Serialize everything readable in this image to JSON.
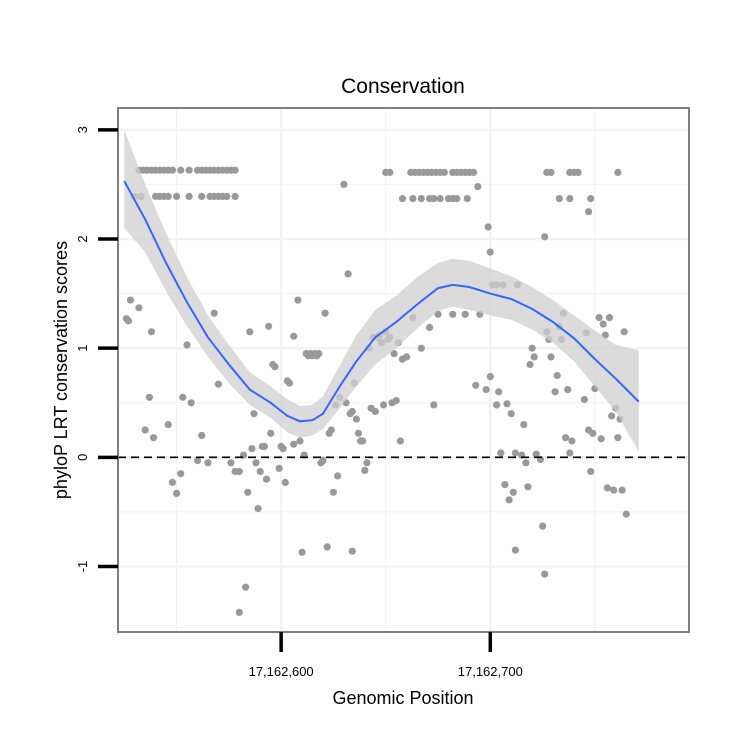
{
  "chart_data": {
    "type": "scatter",
    "title": "Conservation",
    "xlabel": "Genomic Position",
    "ylabel": "phyloP LRT conservation scores",
    "xlim": [
      17162522,
      17162795
    ],
    "ylim": [
      -1.6,
      3.2
    ],
    "x_ticks": [
      17162600,
      17162700
    ],
    "x_tick_labels": [
      "17,162,600",
      "17,162,700"
    ],
    "y_ticks": [
      -1,
      0,
      1,
      2,
      3
    ],
    "y_tick_labels": [
      "-1",
      "0",
      "1",
      "2",
      "3"
    ],
    "x_minor_grid": [
      17162550,
      17162650,
      17162750
    ],
    "y_minor_grid": [
      -0.5,
      0.5,
      1.5,
      2.5
    ],
    "reference_line": {
      "y": 0,
      "style": "dashed"
    },
    "points": [
      [
        17162532,
        2.63
      ],
      [
        17162534,
        2.63
      ],
      [
        17162536,
        2.63
      ],
      [
        17162538,
        2.63
      ],
      [
        17162540,
        2.63
      ],
      [
        17162542,
        2.63
      ],
      [
        17162544,
        2.63
      ],
      [
        17162546,
        2.63
      ],
      [
        17162548,
        2.63
      ],
      [
        17162552,
        2.63
      ],
      [
        17162556,
        2.63
      ],
      [
        17162560,
        2.63
      ],
      [
        17162562,
        2.63
      ],
      [
        17162564,
        2.63
      ],
      [
        17162566,
        2.63
      ],
      [
        17162568,
        2.63
      ],
      [
        17162570,
        2.63
      ],
      [
        17162572,
        2.63
      ],
      [
        17162574,
        2.63
      ],
      [
        17162576,
        2.63
      ],
      [
        17162578,
        2.63
      ],
      [
        17162530,
        2.39
      ],
      [
        17162533,
        2.39
      ],
      [
        17162540,
        2.39
      ],
      [
        17162542,
        2.39
      ],
      [
        17162544,
        2.39
      ],
      [
        17162546,
        2.39
      ],
      [
        17162550,
        2.39
      ],
      [
        17162556,
        2.39
      ],
      [
        17162562,
        2.39
      ],
      [
        17162566,
        2.39
      ],
      [
        17162568,
        2.39
      ],
      [
        17162570,
        2.39
      ],
      [
        17162572,
        2.39
      ],
      [
        17162574,
        2.39
      ],
      [
        17162578,
        2.39
      ],
      [
        17162526,
        1.27
      ],
      [
        17162527,
        1.25
      ],
      [
        17162528,
        1.44
      ],
      [
        17162532,
        1.37
      ],
      [
        17162535,
        0.25
      ],
      [
        17162537,
        0.55
      ],
      [
        17162538,
        1.15
      ],
      [
        17162539,
        0.18
      ],
      [
        17162546,
        0.3
      ],
      [
        17162548,
        -0.23
      ],
      [
        17162550,
        -0.33
      ],
      [
        17162552,
        -0.15
      ],
      [
        17162553,
        0.55
      ],
      [
        17162555,
        1.03
      ],
      [
        17162557,
        0.5
      ],
      [
        17162560,
        -0.03
      ],
      [
        17162562,
        0.2
      ],
      [
        17162565,
        -0.05
      ],
      [
        17162568,
        1.32
      ],
      [
        17162570,
        0.67
      ],
      [
        17162576,
        -0.05
      ],
      [
        17162578,
        -0.13
      ],
      [
        17162580,
        -0.13
      ],
      [
        17162580,
        -1.42
      ],
      [
        17162582,
        0.02
      ],
      [
        17162583,
        -1.19
      ],
      [
        17162584,
        -0.32
      ],
      [
        17162585,
        1.15
      ],
      [
        17162586,
        0.08
      ],
      [
        17162587,
        0.4
      ],
      [
        17162588,
        -0.05
      ],
      [
        17162589,
        -0.47
      ],
      [
        17162590,
        -0.13
      ],
      [
        17162591,
        0.1
      ],
      [
        17162592,
        0.1
      ],
      [
        17162593,
        -0.2
      ],
      [
        17162594,
        1.2
      ],
      [
        17162595,
        0.22
      ],
      [
        17162596,
        0.85
      ],
      [
        17162597,
        0.83
      ],
      [
        17162599,
        -0.1
      ],
      [
        17162600,
        0.1
      ],
      [
        17162601,
        0.08
      ],
      [
        17162602,
        -0.23
      ],
      [
        17162603,
        0.7
      ],
      [
        17162604,
        0.68
      ],
      [
        17162606,
        0.12
      ],
      [
        17162606,
        1.11
      ],
      [
        17162608,
        1.44
      ],
      [
        17162609,
        0.15
      ],
      [
        17162610,
        -0.87
      ],
      [
        17162611,
        0.02
      ],
      [
        17162612,
        0.95
      ],
      [
        17162613,
        0.93
      ],
      [
        17162614,
        0.95
      ],
      [
        17162615,
        0.93
      ],
      [
        17162616,
        0.95
      ],
      [
        17162617,
        0.93
      ],
      [
        17162618,
        0.95
      ],
      [
        17162619,
        -0.05
      ],
      [
        17162620,
        -0.03
      ],
      [
        17162621,
        1.32
      ],
      [
        17162622,
        -0.82
      ],
      [
        17162623,
        0.22
      ],
      [
        17162624,
        0.25
      ],
      [
        17162625,
        -0.32
      ],
      [
        17162626,
        0.48
      ],
      [
        17162627,
        -0.17
      ],
      [
        17162628,
        0.55
      ],
      [
        17162630,
        2.5
      ],
      [
        17162631,
        0.5
      ],
      [
        17162632,
        1.68
      ],
      [
        17162633,
        0.4
      ],
      [
        17162634,
        0.42
      ],
      [
        17162634,
        -0.86
      ],
      [
        17162635,
        0.68
      ],
      [
        17162636,
        0.35
      ],
      [
        17162637,
        0.22
      ],
      [
        17162638,
        0.15
      ],
      [
        17162639,
        0.15
      ],
      [
        17162640,
        -0.12
      ],
      [
        17162641,
        -0.05
      ],
      [
        17162642,
        1.0
      ],
      [
        17162643,
        0.45
      ],
      [
        17162644,
        1.1
      ],
      [
        17162645,
        0.42
      ],
      [
        17162646,
        1.1
      ],
      [
        17162647,
        1.12
      ],
      [
        17162648,
        1.05
      ],
      [
        17162649,
        0.48
      ],
      [
        17162650,
        1.15
      ],
      [
        17162651,
        1.08
      ],
      [
        17162652,
        1.1
      ],
      [
        17162653,
        0.5
      ],
      [
        17162654,
        0.95
      ],
      [
        17162655,
        0.52
      ],
      [
        17162656,
        1.05
      ],
      [
        17162657,
        0.15
      ],
      [
        17162658,
        0.9
      ],
      [
        17162660,
        0.92
      ],
      [
        17162663,
        1.28
      ],
      [
        17162667,
        1.0
      ],
      [
        17162671,
        1.19
      ],
      [
        17162673,
        0.48
      ],
      [
        17162675,
        1.31
      ],
      [
        17162682,
        1.31
      ],
      [
        17162688,
        1.31
      ],
      [
        17162693,
        0.66
      ],
      [
        17162694,
        2.48
      ],
      [
        17162695,
        1.31
      ],
      [
        17162698,
        0.62
      ],
      [
        17162699,
        2.11
      ],
      [
        17162700,
        1.88
      ],
      [
        17162700,
        0.74
      ],
      [
        17162701,
        1.58
      ],
      [
        17162703,
        1.58
      ],
      [
        17162703,
        0.48
      ],
      [
        17162704,
        0.6
      ],
      [
        17162705,
        0.04
      ],
      [
        17162706,
        1.58
      ],
      [
        17162707,
        -0.25
      ],
      [
        17162708,
        0.49
      ],
      [
        17162709,
        -0.39
      ],
      [
        17162710,
        0.4
      ],
      [
        17162711,
        -0.32
      ],
      [
        17162712,
        0.04
      ],
      [
        17162712,
        -0.85
      ],
      [
        17162713,
        1.58
      ],
      [
        17162715,
        0.02
      ],
      [
        17162716,
        0.3
      ],
      [
        17162717,
        -0.05
      ],
      [
        17162718,
        -0.27
      ],
      [
        17162719,
        0.85
      ],
      [
        17162720,
        1.0
      ],
      [
        17162721,
        0.92
      ],
      [
        17162722,
        0.03
      ],
      [
        17162724,
        -0.02
      ],
      [
        17162725,
        -0.63
      ],
      [
        17162726,
        2.02
      ],
      [
        17162726,
        -1.07
      ],
      [
        17162727,
        1.15
      ],
      [
        17162728,
        1.08
      ],
      [
        17162729,
        0.92
      ],
      [
        17162731,
        0.6
      ],
      [
        17162732,
        0.75
      ],
      [
        17162733,
        1.2
      ],
      [
        17162734,
        1.08
      ],
      [
        17162735,
        1.32
      ],
      [
        17162736,
        0.18
      ],
      [
        17162737,
        0.62
      ],
      [
        17162738,
        0.04
      ],
      [
        17162739,
        0.15
      ],
      [
        17162745,
        0.53
      ],
      [
        17162746,
        1.14
      ],
      [
        17162747,
        0.25
      ],
      [
        17162748,
        -0.13
      ],
      [
        17162749,
        0.22
      ],
      [
        17162750,
        0.63
      ],
      [
        17162752,
        1.28
      ],
      [
        17162753,
        0.17
      ],
      [
        17162754,
        1.22
      ],
      [
        17162755,
        1.12
      ],
      [
        17162756,
        -0.28
      ],
      [
        17162757,
        1.28
      ],
      [
        17162758,
        0.38
      ],
      [
        17162759,
        -0.3
      ],
      [
        17162760,
        0.45
      ],
      [
        17162761,
        0.18
      ],
      [
        17162762,
        0.35
      ],
      [
        17162763,
        -0.3
      ],
      [
        17162764,
        1.15
      ],
      [
        17162765,
        -0.52
      ],
      [
        17162650,
        2.61
      ],
      [
        17162652,
        2.61
      ],
      [
        17162662,
        2.61
      ],
      [
        17162664,
        2.61
      ],
      [
        17162666,
        2.61
      ],
      [
        17162668,
        2.61
      ],
      [
        17162670,
        2.61
      ],
      [
        17162672,
        2.61
      ],
      [
        17162674,
        2.61
      ],
      [
        17162676,
        2.61
      ],
      [
        17162678,
        2.61
      ],
      [
        17162682,
        2.61
      ],
      [
        17162684,
        2.61
      ],
      [
        17162686,
        2.61
      ],
      [
        17162688,
        2.61
      ],
      [
        17162690,
        2.61
      ],
      [
        17162692,
        2.61
      ],
      [
        17162727,
        2.61
      ],
      [
        17162729,
        2.61
      ],
      [
        17162738,
        2.61
      ],
      [
        17162740,
        2.61
      ],
      [
        17162742,
        2.61
      ],
      [
        17162761,
        2.61
      ],
      [
        17162658,
        2.37
      ],
      [
        17162663,
        2.37
      ],
      [
        17162667,
        2.37
      ],
      [
        17162671,
        2.37
      ],
      [
        17162673,
        2.37
      ],
      [
        17162676,
        2.37
      ],
      [
        17162680,
        2.37
      ],
      [
        17162682,
        2.37
      ],
      [
        17162684,
        2.37
      ],
      [
        17162689,
        2.37
      ],
      [
        17162733,
        2.37
      ],
      [
        17162738,
        2.37
      ],
      [
        17162748,
        2.37
      ],
      [
        17162747,
        2.25
      ]
    ],
    "smooth_line": [
      [
        17162525,
        2.53
      ],
      [
        17162535,
        2.18
      ],
      [
        17162545,
        1.78
      ],
      [
        17162555,
        1.42
      ],
      [
        17162565,
        1.1
      ],
      [
        17162575,
        0.85
      ],
      [
        17162585,
        0.62
      ],
      [
        17162595,
        0.5
      ],
      [
        17162603,
        0.38
      ],
      [
        17162609,
        0.33
      ],
      [
        17162615,
        0.34
      ],
      [
        17162620,
        0.4
      ],
      [
        17162628,
        0.65
      ],
      [
        17162636,
        0.88
      ],
      [
        17162645,
        1.1
      ],
      [
        17162655,
        1.24
      ],
      [
        17162665,
        1.4
      ],
      [
        17162675,
        1.55
      ],
      [
        17162682,
        1.58
      ],
      [
        17162690,
        1.56
      ],
      [
        17162700,
        1.5
      ],
      [
        17162710,
        1.45
      ],
      [
        17162720,
        1.36
      ],
      [
        17162730,
        1.24
      ],
      [
        17162740,
        1.09
      ],
      [
        17162750,
        0.9
      ],
      [
        17162760,
        0.72
      ],
      [
        17162771,
        0.51
      ]
    ],
    "confidence_band": {
      "x": [
        17162525,
        17162535,
        17162545,
        17162555,
        17162565,
        17162575,
        17162585,
        17162595,
        17162603,
        17162609,
        17162615,
        17162620,
        17162628,
        17162636,
        17162645,
        17162655,
        17162665,
        17162675,
        17162682,
        17162690,
        17162700,
        17162710,
        17162720,
        17162730,
        17162740,
        17162750,
        17162760,
        17162771
      ],
      "upper": [
        3.0,
        2.5,
        2.05,
        1.65,
        1.3,
        1.03,
        0.78,
        0.65,
        0.53,
        0.47,
        0.48,
        0.56,
        0.84,
        1.12,
        1.35,
        1.48,
        1.65,
        1.78,
        1.82,
        1.8,
        1.73,
        1.66,
        1.56,
        1.44,
        1.3,
        1.16,
        1.03,
        0.98
      ],
      "lower": [
        2.1,
        1.88,
        1.52,
        1.2,
        0.92,
        0.68,
        0.48,
        0.36,
        0.23,
        0.18,
        0.2,
        0.26,
        0.45,
        0.65,
        0.85,
        1.0,
        1.18,
        1.34,
        1.38,
        1.35,
        1.3,
        1.26,
        1.17,
        1.05,
        0.88,
        0.65,
        0.42,
        0.05
      ]
    },
    "colors": {
      "points": "#999999",
      "smooth_line": "#3366ff",
      "band": "#cfcfcf",
      "frame": "#7f7f7f",
      "grid": "#f2f2f2",
      "reference_line": "#000000",
      "ticks": "#000000"
    },
    "grid": true,
    "legend": "none"
  }
}
